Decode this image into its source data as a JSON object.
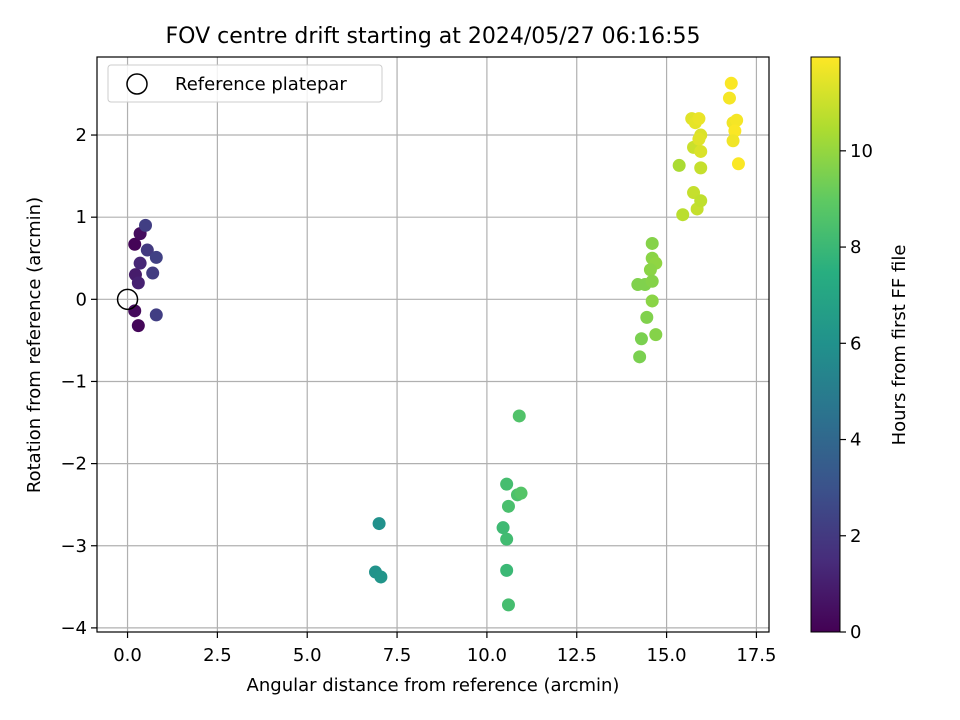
{
  "chart_data": {
    "type": "scatter",
    "title": "FOV centre drift starting at 2024/05/27 06:16:55",
    "xlabel": "Angular distance from reference (arcmin)",
    "ylabel": "Rotation from reference (arcmin)",
    "xlim": [
      -0.85,
      17.85
    ],
    "ylim": [
      -4.05,
      2.95
    ],
    "xticks": [
      0.0,
      2.5,
      5.0,
      7.5,
      10.0,
      12.5,
      15.0,
      17.5
    ],
    "xtick_labels": [
      "0.0",
      "2.5",
      "5.0",
      "7.5",
      "10.0",
      "12.5",
      "15.0",
      "17.5"
    ],
    "yticks": [
      -4,
      -3,
      -2,
      -1,
      0,
      1,
      2
    ],
    "ytick_labels": [
      "−4",
      "−3",
      "−2",
      "−1",
      "0",
      "1",
      "2"
    ],
    "grid": true,
    "legend": {
      "position": "top-left",
      "entries": [
        "Reference platepar"
      ]
    },
    "reference_point": {
      "x": 0,
      "y": 0
    },
    "colorbar": {
      "label": "Hours from first FF file",
      "colormap": "viridis",
      "min": 0,
      "max": 11.95,
      "ticks": [
        0,
        2,
        4,
        6,
        8,
        10
      ],
      "tick_labels": [
        "0",
        "2",
        "4",
        "6",
        "8",
        "10"
      ]
    },
    "points": [
      {
        "x": 0.2,
        "y": 0.67,
        "h": 0.1
      },
      {
        "x": 0.35,
        "y": 0.8,
        "h": 0.4
      },
      {
        "x": 0.2,
        "y": -0.14,
        "h": 0.3
      },
      {
        "x": 0.3,
        "y": -0.32,
        "h": 0.2
      },
      {
        "x": 0.22,
        "y": 0.3,
        "h": 0.9
      },
      {
        "x": 0.3,
        "y": 0.2,
        "h": 1.1
      },
      {
        "x": 0.35,
        "y": 0.44,
        "h": 1.3
      },
      {
        "x": 0.5,
        "y": 0.9,
        "h": 2.2
      },
      {
        "x": 0.55,
        "y": 0.6,
        "h": 2.0
      },
      {
        "x": 0.7,
        "y": 0.32,
        "h": 2.1
      },
      {
        "x": 0.8,
        "y": 0.51,
        "h": 2.3
      },
      {
        "x": 0.8,
        "y": -0.19,
        "h": 2.2
      },
      {
        "x": 7.0,
        "y": -2.73,
        "h": 6.0
      },
      {
        "x": 6.9,
        "y": -3.32,
        "h": 6.1
      },
      {
        "x": 7.05,
        "y": -3.38,
        "h": 6.2
      },
      {
        "x": 10.9,
        "y": -1.42,
        "h": 8.6
      },
      {
        "x": 10.55,
        "y": -2.25,
        "h": 8.3
      },
      {
        "x": 10.85,
        "y": -2.38,
        "h": 8.5
      },
      {
        "x": 10.95,
        "y": -2.36,
        "h": 8.7
      },
      {
        "x": 10.6,
        "y": -2.52,
        "h": 8.4
      },
      {
        "x": 10.45,
        "y": -2.78,
        "h": 8.1
      },
      {
        "x": 10.55,
        "y": -2.92,
        "h": 8.2
      },
      {
        "x": 10.55,
        "y": -3.3,
        "h": 8.0
      },
      {
        "x": 10.6,
        "y": -3.72,
        "h": 8.3
      },
      {
        "x": 14.2,
        "y": 0.18,
        "h": 9.6
      },
      {
        "x": 14.4,
        "y": 0.18,
        "h": 9.6
      },
      {
        "x": 14.6,
        "y": 0.68,
        "h": 9.7
      },
      {
        "x": 14.6,
        "y": 0.5,
        "h": 9.8
      },
      {
        "x": 14.7,
        "y": 0.44,
        "h": 9.9
      },
      {
        "x": 14.55,
        "y": 0.36,
        "h": 9.8
      },
      {
        "x": 14.6,
        "y": 0.22,
        "h": 9.7
      },
      {
        "x": 14.6,
        "y": -0.02,
        "h": 9.8
      },
      {
        "x": 14.45,
        "y": -0.22,
        "h": 9.6
      },
      {
        "x": 14.3,
        "y": -0.48,
        "h": 9.5
      },
      {
        "x": 14.7,
        "y": -0.43,
        "h": 9.7
      },
      {
        "x": 14.25,
        "y": -0.7,
        "h": 9.5
      },
      {
        "x": 15.35,
        "y": 1.63,
        "h": 10.4
      },
      {
        "x": 15.45,
        "y": 1.03,
        "h": 10.7
      },
      {
        "x": 15.75,
        "y": 1.3,
        "h": 10.9
      },
      {
        "x": 15.85,
        "y": 1.1,
        "h": 10.9
      },
      {
        "x": 15.95,
        "y": 1.2,
        "h": 10.8
      },
      {
        "x": 15.75,
        "y": 1.85,
        "h": 11.0
      },
      {
        "x": 15.95,
        "y": 1.6,
        "h": 10.9
      },
      {
        "x": 15.7,
        "y": 2.2,
        "h": 11.4
      },
      {
        "x": 15.8,
        "y": 2.15,
        "h": 11.5
      },
      {
        "x": 15.9,
        "y": 2.2,
        "h": 11.6
      },
      {
        "x": 15.95,
        "y": 2.0,
        "h": 11.3
      },
      {
        "x": 15.9,
        "y": 1.95,
        "h": 11.4
      },
      {
        "x": 15.95,
        "y": 1.8,
        "h": 11.3
      },
      {
        "x": 16.75,
        "y": 2.45,
        "h": 11.8
      },
      {
        "x": 16.8,
        "y": 2.63,
        "h": 11.9
      },
      {
        "x": 16.85,
        "y": 2.15,
        "h": 11.7
      },
      {
        "x": 16.95,
        "y": 2.18,
        "h": 11.8
      },
      {
        "x": 16.9,
        "y": 2.05,
        "h": 11.9
      },
      {
        "x": 16.85,
        "y": 1.93,
        "h": 11.7
      },
      {
        "x": 17.0,
        "y": 1.65,
        "h": 11.9
      }
    ]
  }
}
